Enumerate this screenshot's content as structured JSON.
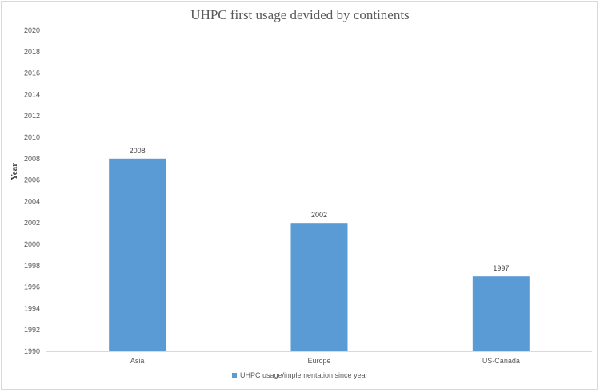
{
  "chart_data": {
    "type": "bar",
    "title": "UHPC first usage devided by continents",
    "xlabel": "",
    "ylabel": "Year",
    "categories": [
      "Asia",
      "Europe",
      "US-Canada"
    ],
    "series": [
      {
        "name": "UHPC usage/implementation since year",
        "values": [
          2008,
          2002,
          1997
        ],
        "color": "#5b9bd5"
      }
    ],
    "ylim": [
      1990,
      2020
    ],
    "yticks": [
      1990,
      1992,
      1994,
      1996,
      1998,
      2000,
      2002,
      2004,
      2006,
      2008,
      2010,
      2012,
      2014,
      2016,
      2018,
      2020
    ],
    "data_labels": [
      "2008",
      "2002",
      "1997"
    ],
    "grid": false,
    "legend_position": "bottom"
  }
}
